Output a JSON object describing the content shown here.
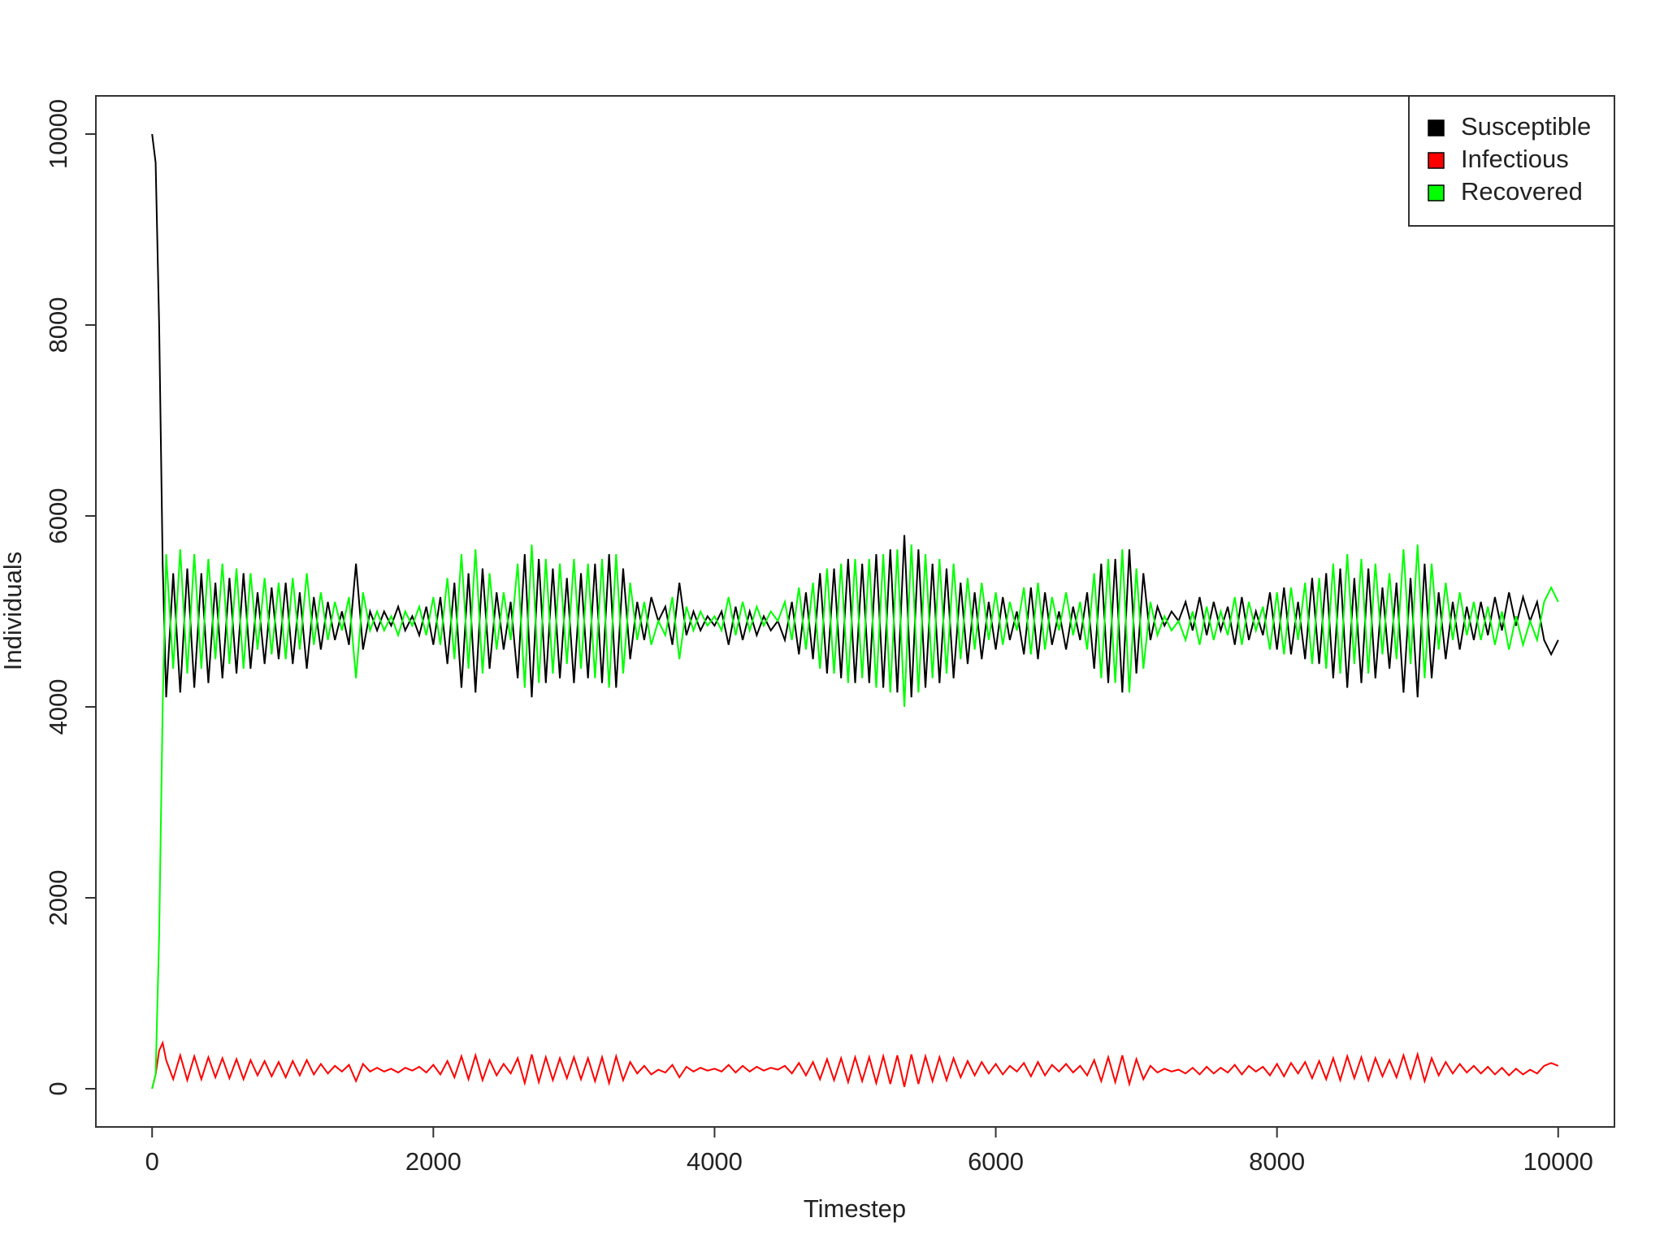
{
  "chart_data": {
    "type": "line",
    "x_label": "Timestep",
    "y_label": "Individuals",
    "xlim": [
      -400,
      10400
    ],
    "ylim": [
      -400,
      10400
    ],
    "xticks": [
      0,
      2000,
      4000,
      6000,
      8000,
      10000
    ],
    "yticks": [
      0,
      2000,
      4000,
      6000,
      8000,
      10000
    ],
    "legend": "topright",
    "x": [
      0,
      25,
      50,
      75,
      100,
      150,
      200,
      250,
      300,
      350,
      400,
      450,
      500,
      550,
      600,
      650,
      700,
      750,
      800,
      850,
      900,
      950,
      1000,
      1050,
      1100,
      1150,
      1200,
      1250,
      1300,
      1350,
      1400,
      1450,
      1500,
      1550,
      1600,
      1650,
      1700,
      1750,
      1800,
      1850,
      1900,
      1950,
      2000,
      2050,
      2100,
      2150,
      2200,
      2250,
      2300,
      2350,
      2400,
      2450,
      2500,
      2550,
      2600,
      2650,
      2700,
      2750,
      2800,
      2850,
      2900,
      2950,
      3000,
      3050,
      3100,
      3150,
      3200,
      3250,
      3300,
      3350,
      3400,
      3450,
      3500,
      3550,
      3600,
      3650,
      3700,
      3750,
      3800,
      3850,
      3900,
      3950,
      4000,
      4050,
      4100,
      4150,
      4200,
      4250,
      4300,
      4350,
      4400,
      4450,
      4500,
      4550,
      4600,
      4650,
      4700,
      4750,
      4800,
      4850,
      4900,
      4950,
      5000,
      5050,
      5100,
      5150,
      5200,
      5250,
      5300,
      5350,
      5400,
      5450,
      5500,
      5550,
      5600,
      5650,
      5700,
      5750,
      5800,
      5850,
      5900,
      5950,
      6000,
      6050,
      6100,
      6150,
      6200,
      6250,
      6300,
      6350,
      6400,
      6450,
      6500,
      6550,
      6600,
      6650,
      6700,
      6750,
      6800,
      6850,
      6900,
      6950,
      7000,
      7050,
      7100,
      7150,
      7200,
      7250,
      7300,
      7350,
      7400,
      7450,
      7500,
      7550,
      7600,
      7650,
      7700,
      7750,
      7800,
      7850,
      7900,
      7950,
      8000,
      8050,
      8100,
      8150,
      8200,
      8250,
      8300,
      8350,
      8400,
      8450,
      8500,
      8550,
      8600,
      8650,
      8700,
      8750,
      8800,
      8850,
      8900,
      8950,
      9000,
      9050,
      9100,
      9150,
      9200,
      9250,
      9300,
      9350,
      9400,
      9450,
      9500,
      9550,
      9600,
      9650,
      9700,
      9750,
      9800,
      9850,
      9900,
      9950,
      10000
    ],
    "series": [
      {
        "name": "Susceptible",
        "color": "#000000",
        "values": [
          10000,
          9700,
          8000,
          5500,
          4100,
          5400,
          4150,
          5450,
          4200,
          5400,
          4250,
          5300,
          4300,
          5350,
          4350,
          5400,
          4400,
          5200,
          4450,
          5250,
          4500,
          5300,
          4450,
          5200,
          4400,
          5150,
          4600,
          5100,
          4700,
          5000,
          4650,
          5500,
          4600,
          5000,
          4800,
          5000,
          4850,
          5050,
          4800,
          4950,
          4750,
          5050,
          4650,
          5150,
          4450,
          5300,
          4200,
          5400,
          4150,
          5450,
          4400,
          5200,
          4600,
          5100,
          4300,
          5600,
          4100,
          5550,
          4250,
          5450,
          4300,
          5350,
          4250,
          5400,
          4300,
          5500,
          4250,
          5600,
          4200,
          5450,
          4500,
          5100,
          4700,
          5150,
          4900,
          5050,
          4650,
          5300,
          4750,
          5000,
          4800,
          4950,
          4850,
          5000,
          4650,
          5050,
          4700,
          5000,
          4750,
          4950,
          4800,
          4900,
          4700,
          5100,
          4550,
          5200,
          4500,
          5400,
          4350,
          5450,
          4300,
          5550,
          4250,
          5500,
          4250,
          5600,
          4200,
          5650,
          4150,
          5800,
          4100,
          5650,
          4200,
          5500,
          4250,
          5450,
          4300,
          5300,
          4450,
          5200,
          4500,
          5100,
          4600,
          5150,
          4700,
          5000,
          4550,
          5250,
          4500,
          5200,
          4650,
          5000,
          4600,
          5050,
          4700,
          5200,
          4400,
          5500,
          4250,
          5550,
          4150,
          5650,
          4350,
          5400,
          4700,
          5050,
          4850,
          5000,
          4900,
          5100,
          4800,
          5150,
          4750,
          5100,
          4800,
          5050,
          4650,
          5150,
          4700,
          5000,
          4750,
          5200,
          4600,
          5250,
          4550,
          5100,
          4500,
          5350,
          4450,
          5400,
          4300,
          5450,
          4200,
          5350,
          4250,
          5450,
          4300,
          5250,
          4400,
          5300,
          4150,
          5350,
          4100,
          5500,
          4300,
          5200,
          4500,
          5100,
          4600,
          5050,
          4700,
          5100,
          4750,
          5150,
          4800,
          5200,
          4850,
          5150,
          4900,
          5100,
          4700,
          4550,
          4700
        ]
      },
      {
        "name": "Infectious",
        "color": "#ff0000",
        "values": [
          0,
          150,
          400,
          480,
          300,
          100,
          350,
          90,
          340,
          100,
          330,
          120,
          320,
          110,
          310,
          100,
          300,
          140,
          290,
          130,
          280,
          120,
          290,
          140,
          300,
          150,
          260,
          160,
          240,
          180,
          250,
          80,
          260,
          180,
          220,
          180,
          210,
          170,
          220,
          190,
          230,
          170,
          250,
          150,
          290,
          120,
          340,
          100,
          350,
          90,
          300,
          140,
          260,
          160,
          320,
          60,
          360,
          70,
          330,
          90,
          320,
          110,
          330,
          100,
          320,
          80,
          330,
          60,
          340,
          90,
          280,
          160,
          240,
          150,
          200,
          170,
          250,
          120,
          230,
          180,
          220,
          190,
          210,
          180,
          250,
          170,
          240,
          180,
          230,
          190,
          220,
          200,
          240,
          160,
          270,
          140,
          280,
          100,
          310,
          90,
          320,
          70,
          330,
          80,
          330,
          60,
          340,
          50,
          350,
          20,
          360,
          50,
          340,
          80,
          330,
          90,
          320,
          120,
          290,
          140,
          280,
          160,
          260,
          150,
          240,
          180,
          270,
          130,
          280,
          140,
          250,
          180,
          260,
          170,
          240,
          140,
          300,
          80,
          330,
          70,
          350,
          50,
          310,
          100,
          240,
          170,
          210,
          180,
          200,
          160,
          220,
          150,
          230,
          160,
          220,
          170,
          250,
          150,
          240,
          180,
          230,
          140,
          260,
          130,
          270,
          160,
          280,
          110,
          290,
          100,
          320,
          90,
          340,
          110,
          330,
          90,
          320,
          130,
          300,
          120,
          350,
          110,
          360,
          80,
          320,
          140,
          280,
          160,
          260,
          170,
          240,
          160,
          230,
          150,
          220,
          140,
          210,
          150,
          200,
          160,
          240,
          270,
          240
        ]
      },
      {
        "name": "Recovered",
        "color": "#00ff00",
        "values": [
          0,
          150,
          1600,
          4000,
          5600,
          4400,
          5650,
          4350,
          5600,
          4400,
          5550,
          4500,
          5500,
          4450,
          5450,
          4400,
          5400,
          4600,
          5350,
          4550,
          5300,
          4500,
          5350,
          4600,
          5400,
          4650,
          5200,
          4700,
          5100,
          4800,
          5150,
          4300,
          5200,
          4800,
          5000,
          4800,
          4950,
          4750,
          5000,
          4850,
          5050,
          4750,
          5150,
          4650,
          5350,
          4500,
          5600,
          4400,
          5650,
          4350,
          5400,
          4600,
          5200,
          4700,
          5500,
          4200,
          5700,
          4250,
          5550,
          4350,
          5500,
          4450,
          5550,
          4400,
          5500,
          4300,
          5550,
          4200,
          5600,
          4350,
          5300,
          4700,
          5100,
          4650,
          4900,
          4750,
          5150,
          4500,
          5050,
          4800,
          5000,
          4850,
          4950,
          4800,
          5150,
          4750,
          5100,
          4800,
          5050,
          4850,
          5000,
          4900,
          5100,
          4700,
          5250,
          4600,
          5300,
          4400,
          5450,
          4350,
          5500,
          4250,
          5550,
          4300,
          5550,
          4200,
          5600,
          4150,
          5650,
          4000,
          5700,
          4150,
          5600,
          4300,
          5550,
          4350,
          5500,
          4500,
          5350,
          4600,
          5300,
          4700,
          5200,
          4650,
          5100,
          4800,
          5250,
          4550,
          5300,
          4600,
          5150,
          4800,
          5200,
          4750,
          5100,
          4600,
          5400,
          4300,
          5550,
          4250,
          5650,
          4150,
          5450,
          4400,
          5100,
          4750,
          4950,
          4800,
          4900,
          4700,
          5000,
          4650,
          5050,
          4700,
          5000,
          4750,
          5150,
          4650,
          5100,
          4800,
          5050,
          4600,
          5200,
          4550,
          5250,
          4700,
          5300,
          4450,
          5350,
          4400,
          5500,
          4350,
          5600,
          4450,
          5550,
          4350,
          5500,
          4550,
          5400,
          4500,
          5650,
          4450,
          5700,
          4300,
          5500,
          4600,
          5300,
          4700,
          5200,
          4750,
          5100,
          4700,
          5050,
          4650,
          5000,
          4600,
          4950,
          4650,
          4900,
          4700,
          5100,
          5250,
          5100
        ]
      }
    ]
  }
}
